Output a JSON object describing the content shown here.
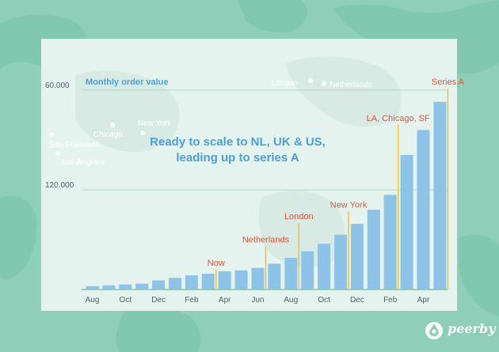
{
  "colors": {
    "background": "#8fcfba",
    "panel": "#e5f3ee",
    "bar": "#8ec3e8",
    "milestone_line": "#f2c12e",
    "milestone_label": "#e8533a",
    "headline": "#4a9fe0",
    "axis_text": "#555f6b",
    "city_label": "#ffffff"
  },
  "headline": {
    "line1": "Ready to scale to NL, UK & US,",
    "line2": "leading up to series A"
  },
  "map_cities": [
    "San Fransisco",
    "Los Angeles",
    "Chicago",
    "New York",
    "London",
    "Netherlands"
  ],
  "brand": {
    "name": "peerby",
    "icon": "peerby-logo-icon"
  },
  "chart_data": {
    "type": "bar",
    "title": "",
    "ylabel": "Monthly order value",
    "xlabel": "",
    "ylim": [
      0,
      122000
    ],
    "yticks": [
      60000,
      120000
    ],
    "ytick_labels": [
      "60.000",
      "120.000"
    ],
    "grid": true,
    "x_tick_labels": [
      "Aug",
      "Oct",
      "Dec",
      "Feb",
      "Apr",
      "Jun",
      "Aug",
      "Oct",
      "Dec",
      "Feb",
      "Apr"
    ],
    "values": [
      2000,
      2500,
      3000,
      3500,
      5500,
      7000,
      8500,
      9500,
      11000,
      11500,
      13000,
      15500,
      19000,
      23000,
      27500,
      33000,
      39500,
      48000,
      57000,
      81000,
      96000,
      113000
    ],
    "milestones": [
      {
        "label": "Now",
        "after_index": 7,
        "value": 12000
      },
      {
        "label": "Netherlands",
        "after_index": 10,
        "value": 26000
      },
      {
        "label": "London",
        "after_index": 12,
        "value": 40000
      },
      {
        "label": "New York",
        "after_index": 15,
        "value": 47000
      },
      {
        "label": "LA, Chicago, SF",
        "after_index": 18,
        "value": 99000
      },
      {
        "label": "Series A",
        "after_index": 21,
        "value": 121000
      }
    ]
  }
}
